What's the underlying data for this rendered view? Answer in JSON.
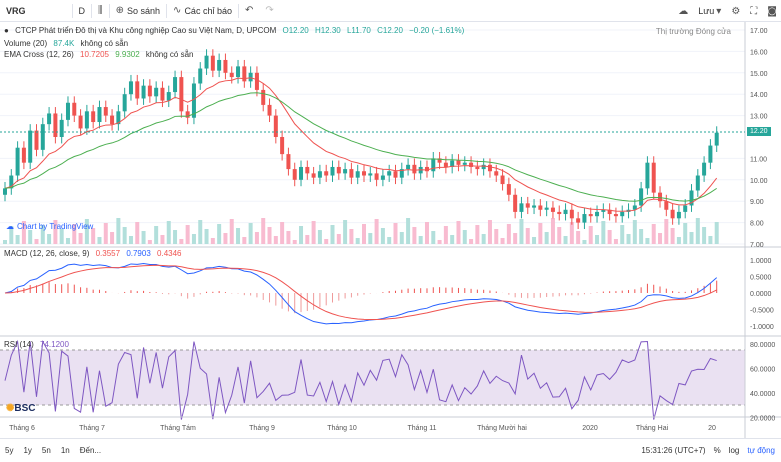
{
  "toolbar": {
    "symbol": "VRG",
    "interval": "D",
    "compare_label": "So sánh",
    "indicators_label": "Các chỉ báo",
    "save_label": "Lưu"
  },
  "legend": {
    "title": "CTCP Phát triển Đô thị và Khu công nghiệp Cao su Việt Nam, D, UPCOM",
    "open": "O12.20",
    "high": "H12.30",
    "low": "L11.70",
    "close": "C12.20",
    "change": "−0.20 (−1.61%)",
    "volume_label": "Volume (20)",
    "volume_value": "87.4K",
    "volume_extra": "không có sẵn",
    "ema_label": "EMA Cross (12, 26)",
    "ema_fast": "10.7205",
    "ema_slow": "9.9302",
    "ema_extra": "không có sẵn",
    "market_status": "Thị trường Đóng cửa",
    "macd_label": "MACD (12, 26, close, 9)",
    "macd_hist": "0.3557",
    "macd_line": "0.7903",
    "macd_signal": "0.4346",
    "rsi_label": "RSI (14)",
    "rsi_value": "74.1200"
  },
  "price_axis": [
    "17.00",
    "16.00",
    "15.00",
    "14.00",
    "13.00",
    "12.20",
    "11.00",
    "10.00",
    "9.00",
    "8.00",
    "7.00"
  ],
  "macd_axis": [
    "1.0000",
    "0.5000",
    "0.0000",
    "-0.5000",
    "-1.0000"
  ],
  "rsi_axis": [
    "80.0000",
    "60.0000",
    "40.0000",
    "20.0000"
  ],
  "time_axis": [
    "Tháng 6",
    "Tháng 7",
    "Tháng Tám",
    "Tháng 9",
    "Tháng 10",
    "Tháng 11",
    "Tháng Mười hai",
    "2020",
    "Tháng Hai",
    "20"
  ],
  "last_price_tag": "12.20",
  "watermark": "Chart by TradingView",
  "broker_logo": "BSC",
  "bottombar": {
    "ranges": [
      "5y",
      "1y",
      "5n",
      "1n",
      "Đến..."
    ],
    "clock": "15:31:26 (UTC+7)",
    "percent": "%",
    "log": "log",
    "auto": "tự động"
  },
  "colors": {
    "up": "#26a69a",
    "down": "#ef5350",
    "ema_fast": "#ef5350",
    "ema_slow": "#4caf50",
    "macd": "#2962ff",
    "signal": "#ef5350",
    "rsi": "#7e57c2"
  }
}
